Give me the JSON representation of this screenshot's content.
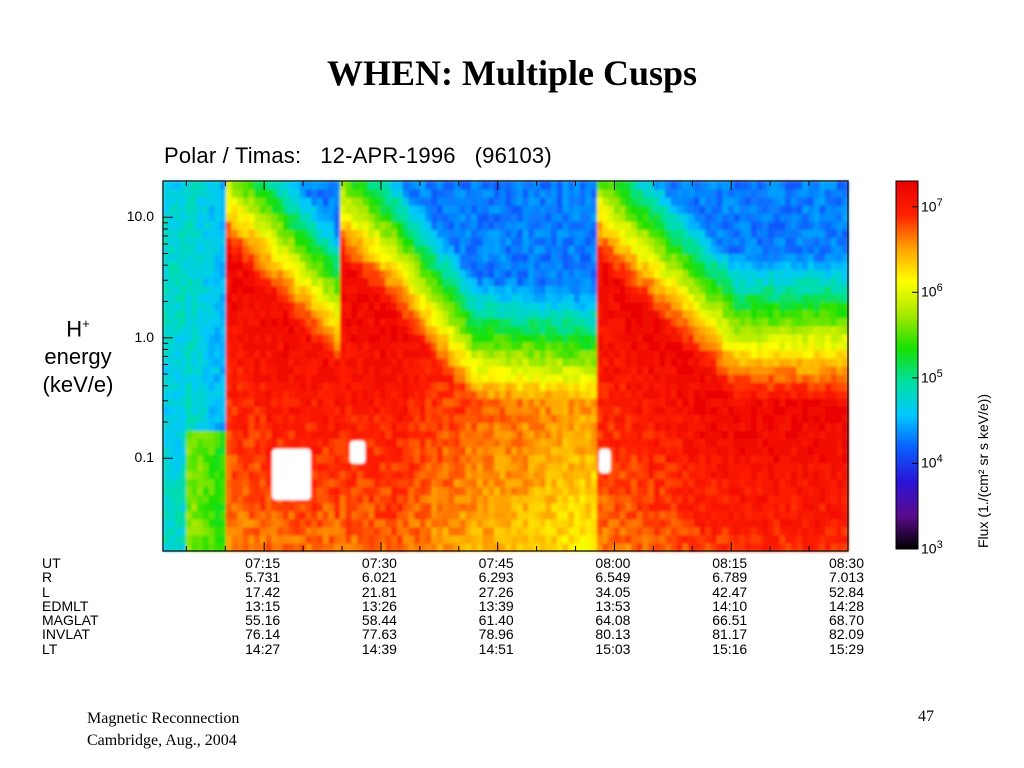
{
  "slide": {
    "title": "WHEN: Multiple Cusps",
    "footer_line1": "Magnetic Reconnection",
    "footer_line2": "Cambridge, Aug., 2004",
    "page_number": "47"
  },
  "chart_data": {
    "type": "heatmap",
    "title": "Polar / Timas:   12-APR-1996   (96103)",
    "ylabel": {
      "species": "H",
      "charge": "+",
      "line2": "energy",
      "line3": "(keV/e)"
    },
    "y_scale": "log",
    "ylim": [
      0.017,
      20
    ],
    "y_ticks": [
      {
        "value": 10,
        "label": "10.0"
      },
      {
        "value": 1,
        "label": "1.0"
      },
      {
        "value": 0.1,
        "label": "0.1"
      }
    ],
    "x_range": [
      "07:02",
      "08:30"
    ],
    "colorbar": {
      "label": "Flux (1./(cm² sr s keV/e))",
      "scale": "log",
      "range": [
        1000,
        20000000
      ],
      "ticks": [
        {
          "value": 10000000,
          "base": "10",
          "exp": "7"
        },
        {
          "value": 1000000,
          "base": "10",
          "exp": "6"
        },
        {
          "value": 100000,
          "base": "10",
          "exp": "5"
        },
        {
          "value": 10000,
          "base": "10",
          "exp": "4"
        },
        {
          "value": 1000,
          "base": "10",
          "exp": "3"
        }
      ],
      "colors": [
        "#000000",
        "#5a0b8c",
        "#2b13d6",
        "#0a5cff",
        "#00c8ff",
        "#00e0a0",
        "#18e000",
        "#a8e800",
        "#ffff00",
        "#ffa000",
        "#ff2000",
        "#e80000"
      ]
    },
    "ephemeris_rows": [
      "UT",
      "R",
      "L",
      "EDMLT",
      "MAGLAT",
      "INVLAT",
      "LT"
    ],
    "ephemeris": [
      {
        "UT": "07:15",
        "R": "5.731",
        "L": "17.42",
        "EDMLT": "13:15",
        "MAGLAT": "55.16",
        "INVLAT": "76.14",
        "LT": "14:27"
      },
      {
        "UT": "07:30",
        "R": "6.021",
        "L": "21.81",
        "EDMLT": "13:26",
        "MAGLAT": "58.44",
        "INVLAT": "77.63",
        "LT": "14:39"
      },
      {
        "UT": "07:45",
        "R": "6.293",
        "L": "27.26",
        "EDMLT": "13:39",
        "MAGLAT": "61.40",
        "INVLAT": "78.96",
        "LT": "14:51"
      },
      {
        "UT": "08:00",
        "R": "6.549",
        "L": "34.05",
        "EDMLT": "13:53",
        "MAGLAT": "64.08",
        "INVLAT": "80.13",
        "LT": "15:03"
      },
      {
        "UT": "08:15",
        "R": "6.789",
        "L": "42.47",
        "EDMLT": "14:10",
        "MAGLAT": "66.51",
        "INVLAT": "81.17",
        "LT": "15:16"
      },
      {
        "UT": "08:30",
        "R": "7.013",
        "L": "52.84",
        "EDMLT": "14:28",
        "MAGLAT": "68.70",
        "INVLAT": "82.09",
        "LT": "15:29"
      }
    ],
    "cusp_injections": [
      {
        "start_ut": "07:10",
        "peak_energy_kev": 5.0
      },
      {
        "start_ut": "07:25",
        "peak_energy_kev": 4.0
      },
      {
        "start_ut": "07:58",
        "peak_energy_kev": 4.0
      }
    ]
  }
}
